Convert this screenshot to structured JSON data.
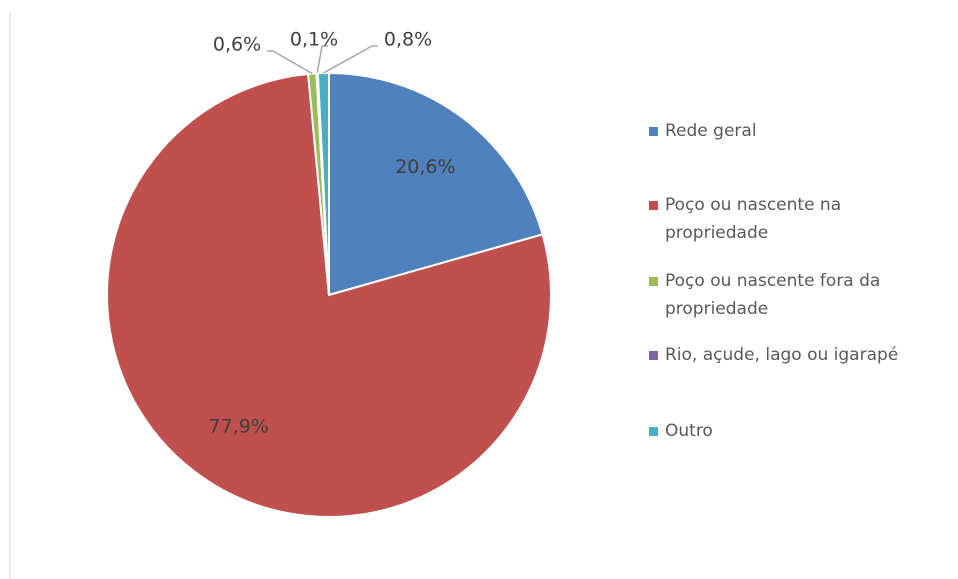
{
  "chart_data": {
    "type": "pie",
    "categories": [
      "Rede geral",
      "Poço ou nascente na propriedade",
      "Poço ou nascente fora da propriedade",
      "Rio, açude, lago ou igarapé",
      "Outro"
    ],
    "values": [
      20.6,
      77.9,
      0.6,
      0.1,
      0.8
    ],
    "value_labels": [
      "20,6%",
      "77,9%",
      "0,6%",
      "0,1%",
      "0,8%"
    ],
    "colors": [
      "#4f81bd",
      "#c0504d",
      "#9bbb59",
      "#8064a2",
      "#4bacc6"
    ],
    "legend": "right"
  }
}
